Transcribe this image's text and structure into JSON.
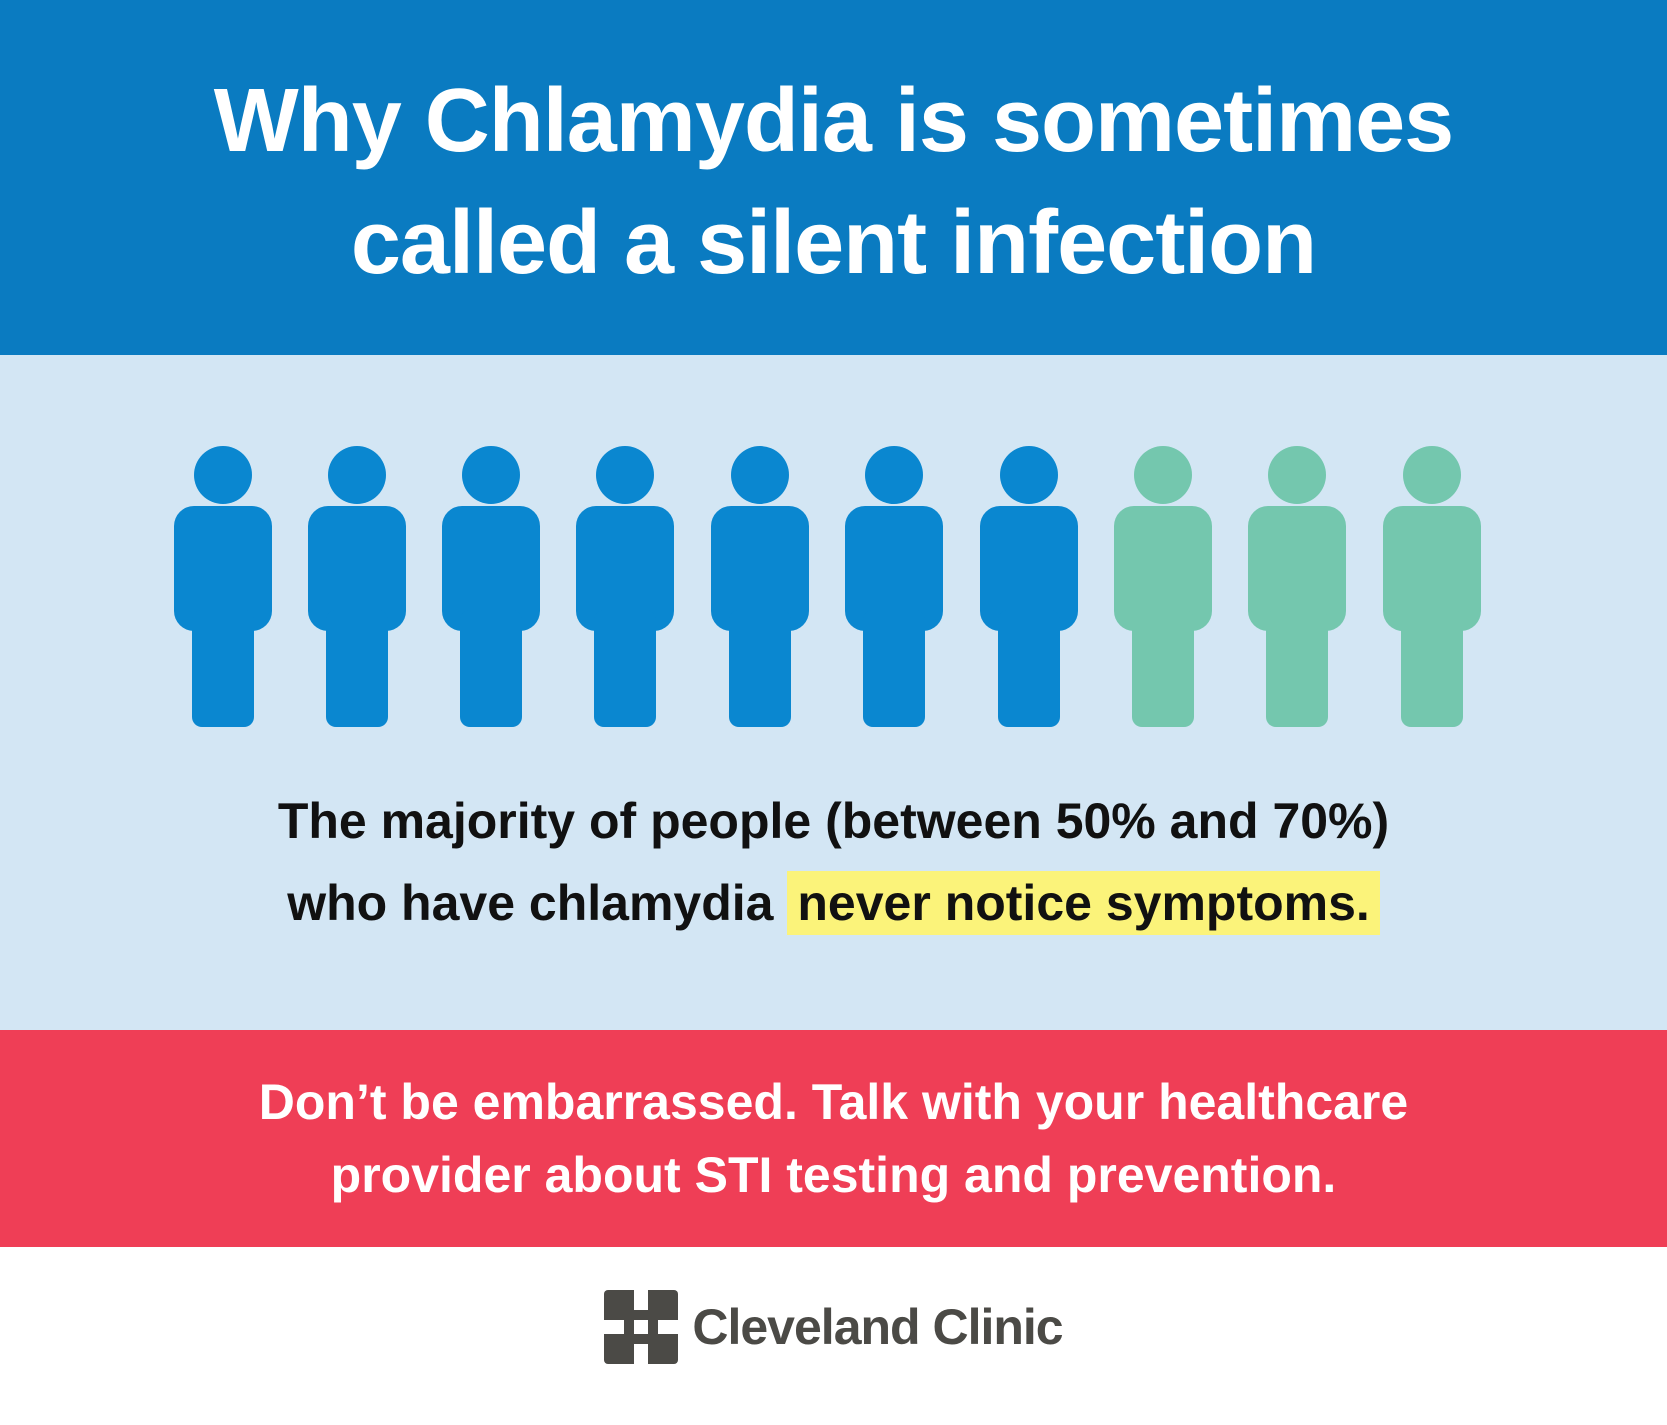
{
  "header": {
    "title_lines": [
      "Why Chlamydia is sometimes",
      "called a silent infection"
    ]
  },
  "body": {
    "lines": [
      "The majority of people (between 50% and 70%)",
      "who have chlamydia"
    ],
    "highlight": "never notice symptoms."
  },
  "cta": {
    "lines": [
      "Don’t be embarrassed. Talk with your healthcare",
      "provider about STI testing and prevention."
    ]
  },
  "footer": {
    "brand": "Cleveland Clinic"
  }
}
